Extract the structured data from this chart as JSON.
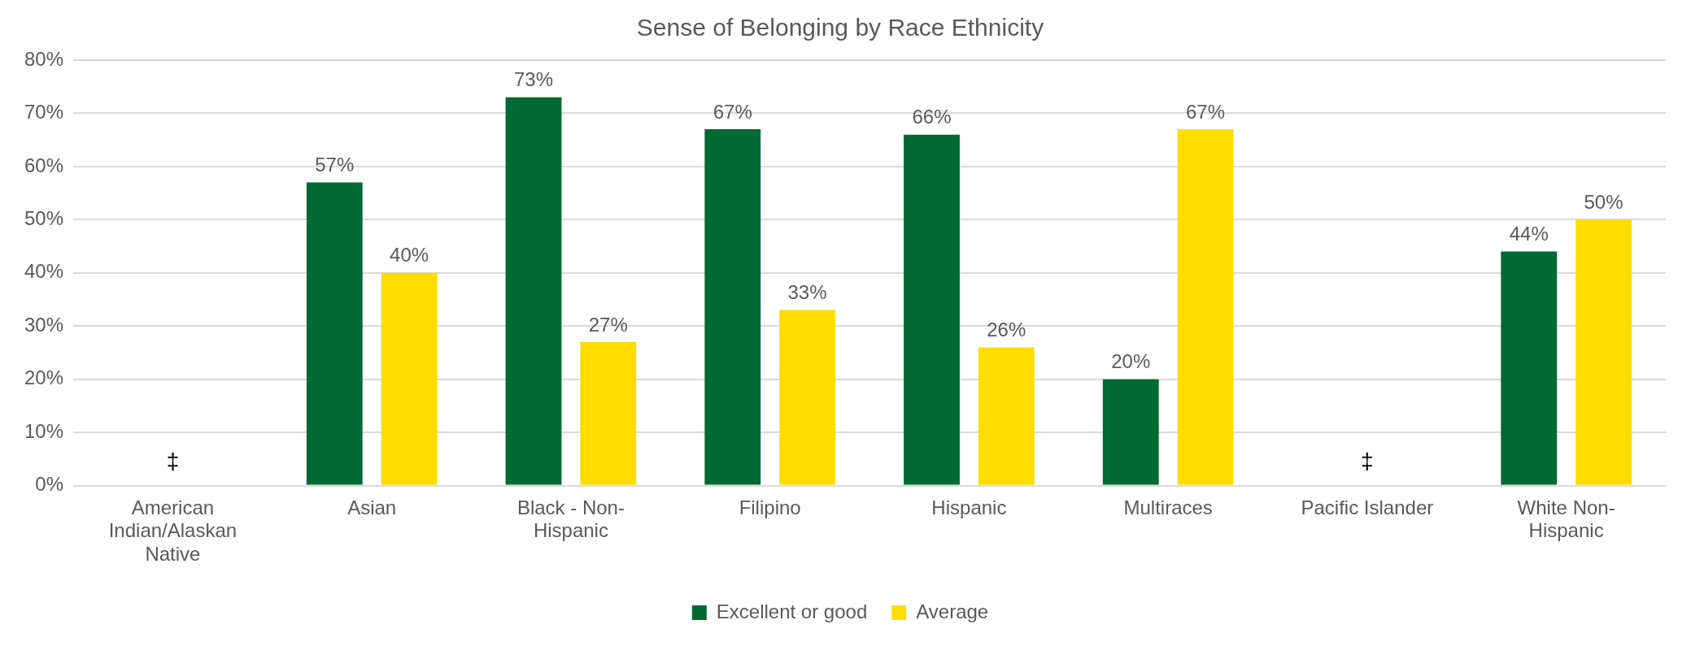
{
  "chart_data": {
    "type": "bar",
    "title": "Sense of Belonging by Race Ethnicity",
    "categories": [
      "American Indian/Alaskan Native",
      "Asian",
      "Black - Non-Hispanic",
      "Filipino",
      "Hispanic",
      "Multiraces",
      "Pacific Islander",
      "White Non-Hispanic"
    ],
    "series": [
      {
        "name": "Excellent or good",
        "color": "#006a33",
        "values": [
          null,
          57,
          73,
          67,
          66,
          20,
          null,
          44
        ],
        "value_labels": [
          null,
          "57%",
          "73%",
          "67%",
          "66%",
          "20%",
          null,
          "44%"
        ]
      },
      {
        "name": "Average",
        "color": "#ffdd00",
        "values": [
          null,
          40,
          27,
          33,
          26,
          67,
          null,
          50
        ],
        "value_labels": [
          null,
          "40%",
          "27%",
          "33%",
          "26%",
          "67%",
          null,
          "50%"
        ]
      }
    ],
    "ylim": [
      0,
      80
    ],
    "yticks": [
      {
        "value": 0,
        "label": "0%"
      },
      {
        "value": 10,
        "label": "10%"
      },
      {
        "value": 20,
        "label": "20%"
      },
      {
        "value": 30,
        "label": "30%"
      },
      {
        "value": 40,
        "label": "40%"
      },
      {
        "value": 50,
        "label": "50%"
      },
      {
        "value": 60,
        "label": "60%"
      },
      {
        "value": 70,
        "label": "70%"
      },
      {
        "value": 80,
        "label": "80%"
      }
    ],
    "grid": "y",
    "legend": "bottom",
    "annotations": [
      "‡",
      "‡"
    ]
  }
}
